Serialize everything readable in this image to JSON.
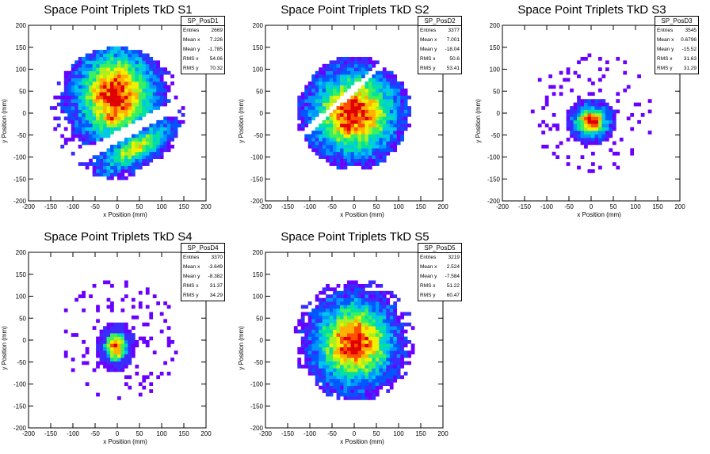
{
  "chart_data": [
    {
      "type": "heatmap",
      "title": "Space Point Triplets TkD S1",
      "xlabel": "x Position (mm)",
      "ylabel": "y Position (mm)",
      "xlim": [
        -200,
        200
      ],
      "ylim": [
        -200,
        200
      ],
      "xticks": [
        -200,
        -150,
        -100,
        -50,
        0,
        50,
        100,
        150,
        200
      ],
      "yticks": [
        -200,
        -150,
        -100,
        -50,
        0,
        50,
        100,
        150,
        200
      ],
      "stats": {
        "name": "SP_PosD1",
        "rows": [
          {
            "label": "Entries",
            "value": "2669"
          },
          {
            "label": "Mean x",
            "value": "7.226"
          },
          {
            "label": "Mean y",
            "value": "-1.785"
          },
          {
            "label": "RMS x",
            "value": "54.06"
          },
          {
            "label": "RMS y",
            "value": "70.32"
          }
        ]
      }
    },
    {
      "type": "heatmap",
      "title": "Space Point Triplets TkD S2",
      "xlabel": "x Position (mm)",
      "ylabel": "y Position (mm)",
      "xlim": [
        -200,
        200
      ],
      "ylim": [
        -200,
        200
      ],
      "xticks": [
        -200,
        -150,
        -100,
        -50,
        0,
        50,
        100,
        150,
        200
      ],
      "yticks": [
        -200,
        -150,
        -100,
        -50,
        0,
        50,
        100,
        150,
        200
      ],
      "stats": {
        "name": "SP_PosD2",
        "rows": [
          {
            "label": "Entries",
            "value": "3377"
          },
          {
            "label": "Mean x",
            "value": "7.001"
          },
          {
            "label": "Mean y",
            "value": "-18.04"
          },
          {
            "label": "RMS x",
            "value": "50.6"
          },
          {
            "label": "RMS y",
            "value": "53.41"
          }
        ]
      }
    },
    {
      "type": "heatmap",
      "title": "Space Point Triplets TkD S3",
      "xlabel": "x Position (mm)",
      "ylabel": "y Position (mm)",
      "xlim": [
        -200,
        200
      ],
      "ylim": [
        -200,
        200
      ],
      "xticks": [
        -200,
        -150,
        -100,
        -50,
        0,
        50,
        100,
        150,
        200
      ],
      "yticks": [
        -200,
        -150,
        -100,
        -50,
        0,
        50,
        100,
        150,
        200
      ],
      "stats": {
        "name": "SP_PosD3",
        "rows": [
          {
            "label": "Entries",
            "value": "3545"
          },
          {
            "label": "Mean x",
            "value": "0.6796"
          },
          {
            "label": "Mean y",
            "value": "-15.52"
          },
          {
            "label": "RMS x",
            "value": "31.63"
          },
          {
            "label": "RMS y",
            "value": "31.29"
          }
        ]
      }
    },
    {
      "type": "heatmap",
      "title": "Space Point Triplets TkD S4",
      "xlabel": "x Position (mm)",
      "ylabel": "y Position (mm)",
      "xlim": [
        -200,
        200
      ],
      "ylim": [
        -200,
        200
      ],
      "xticks": [
        -200,
        -150,
        -100,
        -50,
        0,
        50,
        100,
        150,
        200
      ],
      "yticks": [
        -200,
        -150,
        -100,
        -50,
        0,
        50,
        100,
        150,
        200
      ],
      "stats": {
        "name": "SP_PosD4",
        "rows": [
          {
            "label": "Entries",
            "value": "3370"
          },
          {
            "label": "Mean x",
            "value": "-3.649"
          },
          {
            "label": "Mean y",
            "value": "-8.382"
          },
          {
            "label": "RMS x",
            "value": "31.37"
          },
          {
            "label": "RMS y",
            "value": "34.29"
          }
        ]
      }
    },
    {
      "type": "heatmap",
      "title": "Space Point Triplets TkD S5",
      "xlabel": "x Position (mm)",
      "ylabel": "y Position (mm)",
      "xlim": [
        -200,
        200
      ],
      "ylim": [
        -200,
        200
      ],
      "xticks": [
        -200,
        -150,
        -100,
        -50,
        0,
        50,
        100,
        150,
        200
      ],
      "yticks": [
        -200,
        -150,
        -100,
        -50,
        0,
        50,
        100,
        150,
        200
      ],
      "stats": {
        "name": "SP_PosD5",
        "rows": [
          {
            "label": "Entries",
            "value": "3219"
          },
          {
            "label": "Mean x",
            "value": "2.524"
          },
          {
            "label": "Mean y",
            "value": "-7.584"
          },
          {
            "label": "RMS x",
            "value": "51.22"
          },
          {
            "label": "RMS y",
            "value": "60.47"
          }
        ]
      }
    }
  ],
  "palette": [
    "#6a00ff",
    "#3a2bff",
    "#0057ff",
    "#0096ff",
    "#00c8e6",
    "#00e0a0",
    "#38f060",
    "#a8f020",
    "#f0f000",
    "#ffb000",
    "#ff5000",
    "#e00000"
  ]
}
